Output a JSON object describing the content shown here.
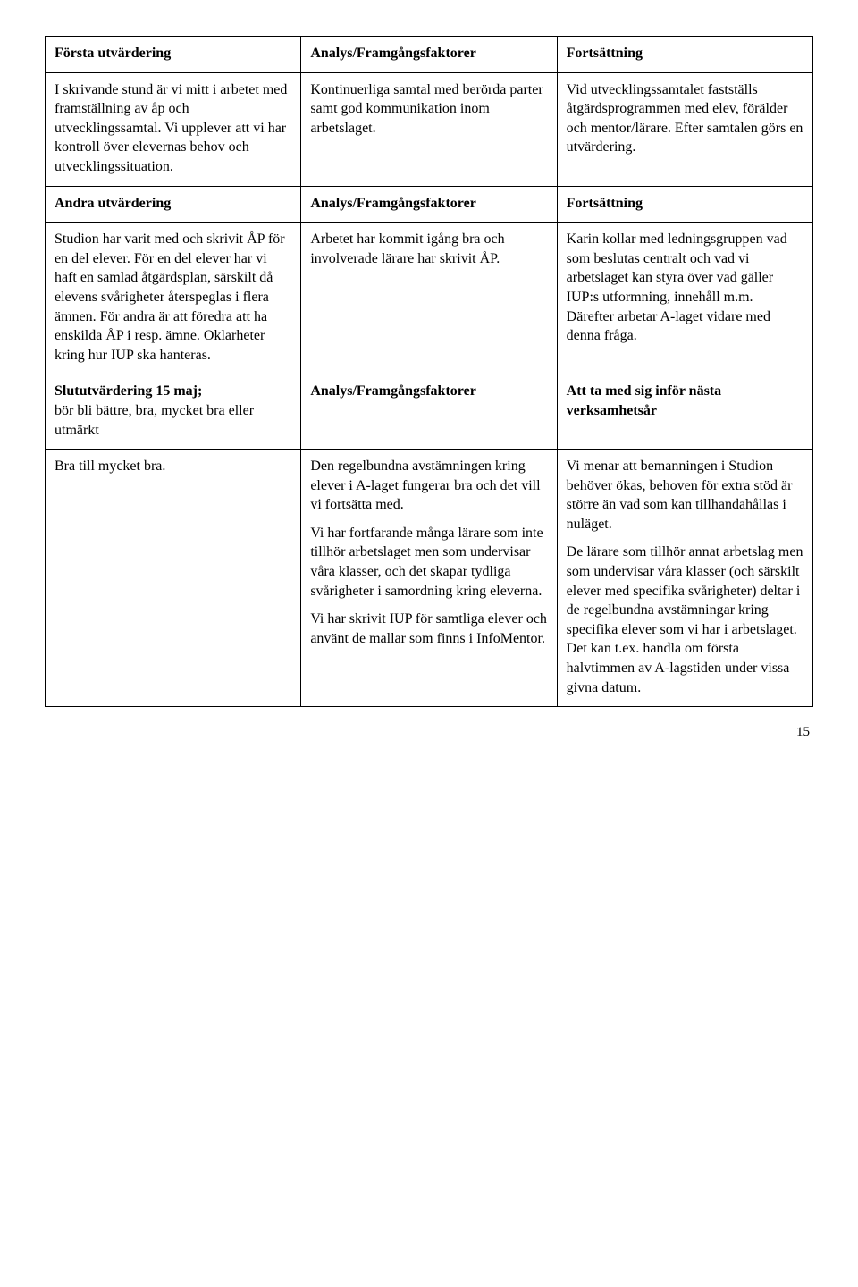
{
  "header1": {
    "c1": "Första utvärdering",
    "c2": "Analys/Framgångsfaktorer",
    "c3": "Fortsättning"
  },
  "row1": {
    "c1": "I skrivande stund är vi mitt i arbetet med framställning av åp och utvecklingssamtal. Vi upplever att vi har kontroll över elevernas behov och utvecklingssituation.",
    "c2": "Kontinuerliga samtal med berörda parter samt god kommunikation inom arbetslaget.",
    "c3": "Vid utvecklingssamtalet fastställs åtgärdsprogrammen med elev, förälder och mentor/lärare. Efter samtalen görs en utvärdering."
  },
  "header2": {
    "c1": "Andra utvärdering",
    "c2": "Analys/Framgångsfaktorer",
    "c3": "Fortsättning"
  },
  "row2": {
    "c1": "Studion har varit med och skrivit ÅP för en del elever. För en del elever har vi haft en samlad åtgärdsplan, särskilt då elevens svårigheter återspeglas i flera ämnen. För andra är att föredra att ha enskilda ÅP i resp. ämne. Oklarheter kring hur IUP ska hanteras.",
    "c2": "Arbetet har kommit igång bra och involverade lärare har skrivit ÅP.",
    "c3": "Karin kollar med ledningsgruppen vad som beslutas centralt och vad vi arbetslaget kan styra över vad gäller IUP:s utformning, innehåll m.m. Därefter arbetar A-laget vidare med denna fråga."
  },
  "header3": {
    "c1a": "Slututvärdering 15 maj;",
    "c1b": "bör bli bättre, bra, mycket bra eller utmärkt",
    "c2": "Analys/Framgångsfaktorer",
    "c3a": "Att ta med sig inför nästa",
    "c3b": "verksamhetsår"
  },
  "row3": {
    "c1": "Bra till mycket bra.",
    "c2p1": "Den regelbundna avstämningen kring elever i A-laget fungerar bra och det vill vi fortsätta med.",
    "c2p2": "Vi har fortfarande många lärare som inte tillhör arbetslaget men som undervisar våra klasser, och det skapar tydliga svårigheter i samordning kring eleverna.",
    "c2p3": "Vi har skrivit IUP för samtliga elever och använt de mallar som finns i InfoMentor.",
    "c3p1": "Vi menar att bemanningen i Studion behöver ökas, behoven för extra stöd är större än vad som kan tillhandahållas i nuläget.",
    "c3p2": "De lärare som tillhör annat arbetslag men som undervisar våra klasser (och särskilt elever med specifika svårigheter) deltar i de regelbundna avstämningar kring specifika elever som vi har i arbetslaget. Det kan t.ex. handla om första halvtimmen av A-lagstiden under vissa givna datum."
  },
  "pageNumber": "15"
}
